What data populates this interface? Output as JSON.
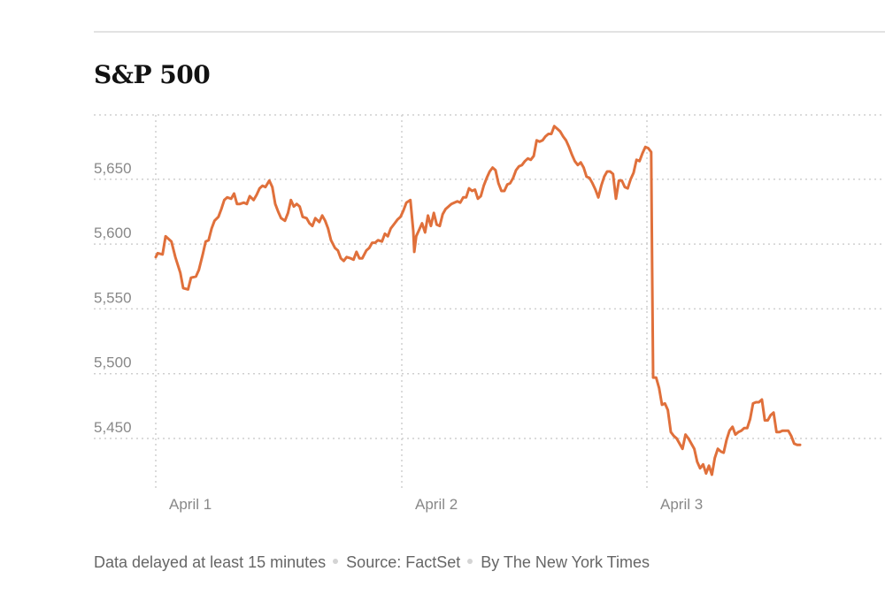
{
  "chart_data": {
    "type": "line",
    "title": "S&P 500",
    "xlabel": "",
    "ylabel": "",
    "x_tick_labels": [
      "April 1",
      "April 2",
      "April 3"
    ],
    "y_ticks": [
      5450,
      5500,
      5550,
      5600,
      5650
    ],
    "y_tick_labels": [
      "5,450",
      "5,500",
      "5,550",
      "5,600",
      "5,650"
    ],
    "ylim": [
      5400,
      5700
    ],
    "grid": true,
    "line_color": "#e0703b",
    "series": [
      {
        "values": [
          [
            0,
            5590
          ],
          [
            2,
            5593
          ],
          [
            7,
            5592
          ],
          [
            10,
            5606
          ],
          [
            16,
            5602
          ],
          [
            20,
            5590
          ],
          [
            25,
            5578
          ],
          [
            28,
            5566
          ],
          [
            33,
            5565
          ],
          [
            36,
            5574
          ],
          [
            41,
            5575
          ],
          [
            44,
            5580
          ],
          [
            48,
            5592
          ],
          [
            51,
            5602
          ],
          [
            54,
            5603
          ],
          [
            57,
            5612
          ],
          [
            60,
            5618
          ],
          [
            64,
            5621
          ],
          [
            67,
            5627
          ],
          [
            70,
            5634
          ],
          [
            73,
            5636
          ],
          [
            77,
            5635
          ],
          [
            80,
            5639
          ],
          [
            83,
            5631
          ],
          [
            86,
            5631
          ],
          [
            90,
            5632
          ],
          [
            93,
            5631
          ],
          [
            96,
            5637
          ],
          [
            100,
            5634
          ],
          [
            103,
            5638
          ],
          [
            106,
            5643
          ],
          [
            109,
            5645
          ],
          [
            112,
            5644
          ],
          [
            116,
            5649
          ],
          [
            119,
            5644
          ],
          [
            122,
            5631
          ],
          [
            125,
            5625
          ],
          [
            128,
            5620
          ],
          [
            132,
            5618
          ],
          [
            135,
            5624
          ],
          [
            138,
            5634
          ],
          [
            141,
            5629
          ],
          [
            144,
            5631
          ],
          [
            147,
            5629
          ],
          [
            150,
            5621
          ],
          [
            154,
            5620
          ],
          [
            157,
            5616
          ],
          [
            160,
            5614
          ],
          [
            163,
            5620
          ],
          [
            167,
            5617
          ],
          [
            170,
            5622
          ],
          [
            173,
            5618
          ],
          [
            176,
            5612
          ],
          [
            179,
            5603
          ],
          [
            183,
            5597
          ],
          [
            186,
            5595
          ],
          [
            189,
            5589
          ],
          [
            192,
            5587
          ],
          [
            195,
            5590
          ],
          [
            199,
            5589
          ],
          [
            202,
            5588
          ],
          [
            205,
            5594
          ],
          [
            208,
            5589
          ],
          [
            211,
            5589
          ],
          [
            215,
            5595
          ],
          [
            218,
            5597
          ],
          [
            221,
            5601
          ],
          [
            224,
            5601
          ],
          [
            227,
            5603
          ],
          [
            231,
            5602
          ],
          [
            234,
            5608
          ],
          [
            237,
            5606
          ],
          [
            240,
            5612
          ],
          [
            244,
            5616
          ],
          [
            247,
            5619
          ],
          [
            250,
            5621
          ],
          [
            253,
            5626
          ],
          [
            256,
            5632
          ],
          [
            260,
            5634
          ],
          [
            263,
            5610
          ],
          [
            264,
            5594
          ],
          [
            266,
            5606
          ],
          [
            269,
            5611
          ],
          [
            272,
            5616
          ],
          [
            275,
            5609
          ],
          [
            278,
            5622
          ],
          [
            281,
            5614
          ],
          [
            284,
            5624
          ],
          [
            287,
            5615
          ],
          [
            290,
            5614
          ],
          [
            293,
            5623
          ],
          [
            296,
            5627
          ],
          [
            299,
            5629
          ],
          [
            302,
            5631
          ],
          [
            305,
            5632
          ],
          [
            308,
            5633
          ],
          [
            311,
            5632
          ],
          [
            314,
            5636
          ],
          [
            317,
            5636
          ],
          [
            320,
            5643
          ],
          [
            323,
            5641
          ],
          [
            326,
            5642
          ],
          [
            329,
            5635
          ],
          [
            332,
            5637
          ],
          [
            335,
            5645
          ],
          [
            338,
            5651
          ],
          [
            341,
            5656
          ],
          [
            344,
            5659
          ],
          [
            347,
            5657
          ],
          [
            350,
            5647
          ],
          [
            353,
            5641
          ],
          [
            356,
            5641
          ],
          [
            359,
            5646
          ],
          [
            362,
            5647
          ],
          [
            365,
            5651
          ],
          [
            368,
            5657
          ],
          [
            371,
            5660
          ],
          [
            374,
            5661
          ],
          [
            377,
            5664
          ],
          [
            380,
            5666
          ],
          [
            383,
            5665
          ],
          [
            386,
            5668
          ],
          [
            389,
            5680
          ],
          [
            392,
            5679
          ],
          [
            395,
            5680
          ],
          [
            398,
            5683
          ],
          [
            401,
            5685
          ],
          [
            404,
            5685
          ],
          [
            407,
            5691
          ],
          [
            410,
            5689
          ],
          [
            413,
            5687
          ],
          [
            416,
            5683
          ],
          [
            419,
            5680
          ],
          [
            422,
            5675
          ],
          [
            425,
            5669
          ],
          [
            428,
            5664
          ],
          [
            431,
            5661
          ],
          [
            434,
            5663
          ],
          [
            437,
            5659
          ],
          [
            440,
            5652
          ],
          [
            443,
            5651
          ],
          [
            446,
            5647
          ],
          [
            449,
            5642
          ],
          [
            452,
            5636
          ],
          [
            455,
            5645
          ],
          [
            458,
            5652
          ],
          [
            461,
            5656
          ],
          [
            464,
            5656
          ],
          [
            467,
            5654
          ],
          [
            470,
            5635
          ],
          [
            473,
            5649
          ],
          [
            476,
            5649
          ],
          [
            479,
            5644
          ],
          [
            482,
            5643
          ],
          [
            485,
            5650
          ],
          [
            488,
            5655
          ],
          [
            491,
            5665
          ],
          [
            494,
            5664
          ],
          [
            497,
            5670
          ],
          [
            500,
            5675
          ],
          [
            503,
            5674
          ],
          [
            506,
            5671
          ],
          [
            507,
            5580
          ],
          [
            508,
            5497
          ],
          [
            511,
            5497
          ],
          [
            514,
            5489
          ],
          [
            517,
            5476
          ],
          [
            520,
            5477
          ],
          [
            523,
            5472
          ],
          [
            526,
            5455
          ],
          [
            529,
            5452
          ],
          [
            532,
            5450
          ],
          [
            535,
            5446
          ],
          [
            538,
            5442
          ],
          [
            541,
            5453
          ],
          [
            544,
            5450
          ],
          [
            547,
            5446
          ],
          [
            550,
            5442
          ],
          [
            553,
            5432
          ],
          [
            556,
            5427
          ],
          [
            559,
            5430
          ],
          [
            562,
            5423
          ],
          [
            565,
            5429
          ],
          [
            568,
            5422
          ],
          [
            571,
            5435
          ],
          [
            574,
            5442
          ],
          [
            577,
            5440
          ],
          [
            580,
            5439
          ],
          [
            583,
            5449
          ],
          [
            586,
            5456
          ],
          [
            589,
            5459
          ],
          [
            592,
            5453
          ],
          [
            595,
            5455
          ],
          [
            598,
            5456
          ],
          [
            601,
            5458
          ],
          [
            604,
            5458
          ],
          [
            607,
            5465
          ],
          [
            610,
            5477
          ],
          [
            613,
            5478
          ],
          [
            616,
            5478
          ],
          [
            619,
            5480
          ],
          [
            622,
            5464
          ],
          [
            625,
            5464
          ],
          [
            628,
            5468
          ],
          [
            631,
            5470
          ],
          [
            634,
            5455
          ],
          [
            637,
            5455
          ],
          [
            640,
            5456
          ],
          [
            643,
            5456
          ],
          [
            646,
            5456
          ],
          [
            649,
            5452
          ],
          [
            652,
            5446
          ],
          [
            655,
            5445
          ],
          [
            658,
            5445
          ]
        ]
      }
    ]
  },
  "footer": {
    "note": "Data delayed at least 15 minutes",
    "source": "Source: FactSet",
    "credit": "By The New York Times"
  }
}
